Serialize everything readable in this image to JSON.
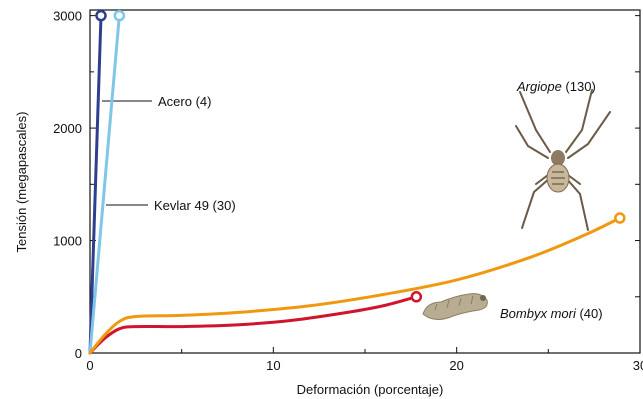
{
  "chart_data": {
    "type": "line",
    "title": "",
    "xlabel": "Deformación (porcentaje)",
    "ylabel": "Tensión (megapascales)",
    "xlim": [
      0,
      30
    ],
    "ylim": [
      0,
      3050
    ],
    "x_ticks": [
      0,
      10,
      20,
      30
    ],
    "y_ticks": [
      0,
      1000,
      2000,
      3000
    ],
    "grid": false,
    "legend": "none",
    "series": [
      {
        "key": "acero",
        "color": "#2e3f8f",
        "points": [
          [
            0,
            0
          ],
          [
            0.6,
            3000
          ]
        ],
        "end_marker": true,
        "label_parts": [
          {
            "text": "Acero",
            "italic": false
          },
          {
            "text": " (4)",
            "italic": false
          }
        ]
      },
      {
        "key": "kevlar",
        "color": "#7fc6e8",
        "points": [
          [
            0,
            0
          ],
          [
            1.6,
            3000
          ]
        ],
        "end_marker": true,
        "label_parts": [
          {
            "text": "Kevlar 49",
            "italic": false
          },
          {
            "text": " (30)",
            "italic": false
          }
        ]
      },
      {
        "key": "bombyx",
        "color": "#d0142c",
        "points": [
          [
            0,
            0
          ],
          [
            0.8,
            130
          ],
          [
            1.6,
            215
          ],
          [
            2.5,
            235
          ],
          [
            5,
            235
          ],
          [
            8,
            250
          ],
          [
            11,
            290
          ],
          [
            14,
            360
          ],
          [
            16,
            420
          ],
          [
            17.8,
            500
          ]
        ],
        "end_marker": true,
        "label_parts": [
          {
            "text": "Bombyx mori",
            "italic": true
          },
          {
            "text": " (40)",
            "italic": false
          }
        ]
      },
      {
        "key": "argiope",
        "color": "#f0980f",
        "points": [
          [
            0,
            0
          ],
          [
            0.8,
            160
          ],
          [
            1.6,
            280
          ],
          [
            2.5,
            325
          ],
          [
            5,
            335
          ],
          [
            8,
            360
          ],
          [
            12,
            420
          ],
          [
            16,
            520
          ],
          [
            20,
            650
          ],
          [
            24,
            850
          ],
          [
            27,
            1050
          ],
          [
            28.9,
            1200
          ]
        ],
        "end_marker": true,
        "label_parts": [
          {
            "text": "Argiope",
            "italic": true
          },
          {
            "text": " (130)",
            "italic": false
          }
        ]
      }
    ]
  },
  "images": {
    "spider": "spider-icon",
    "silkworm": "silkworm-icon"
  }
}
